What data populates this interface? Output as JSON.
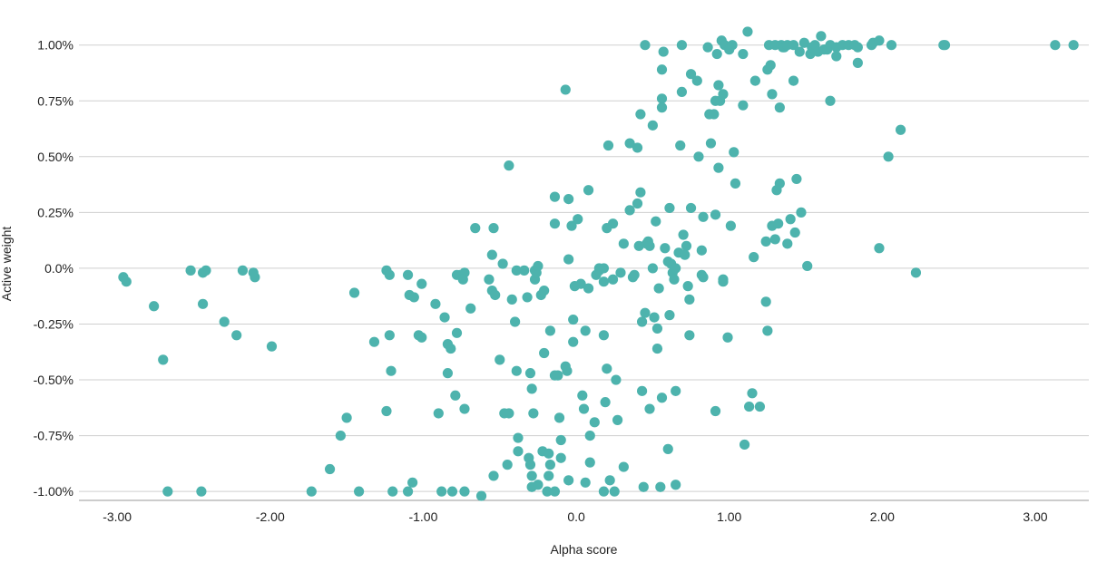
{
  "chart_data": {
    "type": "scatter",
    "title": "",
    "xlabel": "Alpha score",
    "ylabel": "Active weight",
    "xlim": [
      -3.25,
      3.35
    ],
    "ylim": [
      -1.04,
      1.08
    ],
    "x_ticks": [
      -3,
      -2,
      -1,
      0,
      1,
      2,
      3
    ],
    "x_tick_labels": [
      "-3.00",
      "-2.00",
      "-1.00",
      "0.0",
      "1.00",
      "2.00",
      "3.00"
    ],
    "y_ticks": [
      1.0,
      0.75,
      0.5,
      0.25,
      0.0,
      -0.25,
      -0.5,
      -0.75,
      -1.0
    ],
    "y_tick_labels": [
      "1.00%",
      "0.75%",
      "0.50%",
      "0.25%",
      "0.0%",
      "-0.25%",
      "-0.50%",
      "-0.75%",
      "-1.00%"
    ],
    "grid": true,
    "legend": "none",
    "color": "#4db3ad",
    "points": [
      [
        -2.96,
        -0.04
      ],
      [
        -2.94,
        -0.06
      ],
      [
        -2.76,
        -0.17
      ],
      [
        -2.7,
        -0.41
      ],
      [
        -2.67,
        -1.0
      ],
      [
        -2.52,
        -0.01
      ],
      [
        -2.44,
        -0.02
      ],
      [
        -2.42,
        -0.01
      ],
      [
        -2.44,
        -0.16
      ],
      [
        -2.45,
        -1.0
      ],
      [
        -2.3,
        -0.24
      ],
      [
        -2.22,
        -0.3
      ],
      [
        -2.18,
        -0.01
      ],
      [
        -2.11,
        -0.02
      ],
      [
        -2.1,
        -0.04
      ],
      [
        -1.99,
        -0.35
      ],
      [
        -1.73,
        -1.0
      ],
      [
        -1.61,
        -0.9
      ],
      [
        -1.54,
        -0.75
      ],
      [
        -1.5,
        -0.67
      ],
      [
        -1.45,
        -0.11
      ],
      [
        -1.42,
        -1.0
      ],
      [
        -1.32,
        -0.33
      ],
      [
        -1.24,
        -0.01
      ],
      [
        -1.22,
        -0.03
      ],
      [
        -1.22,
        -0.3
      ],
      [
        -1.21,
        -0.46
      ],
      [
        -1.24,
        -0.64
      ],
      [
        -1.2,
        -1.0
      ],
      [
        -1.1,
        -0.03
      ],
      [
        -1.09,
        -0.12
      ],
      [
        -1.06,
        -0.13
      ],
      [
        -1.03,
        -0.3
      ],
      [
        -1.01,
        -0.31
      ],
      [
        -1.01,
        -0.07
      ],
      [
        -1.1,
        -1.0
      ],
      [
        -1.07,
        -0.96
      ],
      [
        -0.92,
        -0.16
      ],
      [
        -0.9,
        -0.65
      ],
      [
        -0.88,
        -1.0
      ],
      [
        -0.86,
        -0.22
      ],
      [
        -0.84,
        -0.34
      ],
      [
        -0.82,
        -0.36
      ],
      [
        -0.84,
        -0.47
      ],
      [
        -0.81,
        -1.0
      ],
      [
        -0.78,
        -0.03
      ],
      [
        -0.76,
        -0.03
      ],
      [
        -0.73,
        -0.02
      ],
      [
        -0.74,
        -0.05
      ],
      [
        -0.78,
        -0.29
      ],
      [
        -0.79,
        -0.57
      ],
      [
        -0.73,
        -0.63
      ],
      [
        -0.73,
        -1.0
      ],
      [
        -0.69,
        -0.18
      ],
      [
        -0.66,
        0.18
      ],
      [
        -0.62,
        -1.02
      ],
      [
        -0.57,
        -0.05
      ],
      [
        -0.55,
        0.06
      ],
      [
        -0.54,
        0.18
      ],
      [
        -0.55,
        -0.1
      ],
      [
        -0.53,
        -0.12
      ],
      [
        -0.54,
        -0.93
      ],
      [
        -0.5,
        -0.41
      ],
      [
        -0.48,
        0.02
      ],
      [
        -0.47,
        -0.65
      ],
      [
        -0.44,
        -0.65
      ],
      [
        -0.45,
        -0.88
      ],
      [
        -0.44,
        0.46
      ],
      [
        -0.42,
        -0.14
      ],
      [
        -0.4,
        -0.24
      ],
      [
        -0.39,
        -0.01
      ],
      [
        -0.39,
        -0.46
      ],
      [
        -0.38,
        -0.76
      ],
      [
        -0.38,
        -0.82
      ],
      [
        -0.34,
        -0.01
      ],
      [
        -0.32,
        -0.13
      ],
      [
        -0.3,
        -0.47
      ],
      [
        -0.29,
        -0.54
      ],
      [
        -0.31,
        -0.85
      ],
      [
        -0.3,
        -0.88
      ],
      [
        -0.29,
        -0.93
      ],
      [
        -0.29,
        -0.98
      ],
      [
        -0.28,
        -0.65
      ],
      [
        -0.27,
        -0.01
      ],
      [
        -0.27,
        -0.05
      ],
      [
        -0.26,
        -0.02
      ],
      [
        -0.25,
        0.01
      ],
      [
        -0.25,
        -0.97
      ],
      [
        -0.23,
        -0.12
      ],
      [
        -0.22,
        -0.82
      ],
      [
        -0.21,
        -0.38
      ],
      [
        -0.21,
        -0.1
      ],
      [
        -0.19,
        -1.0
      ],
      [
        -0.17,
        -0.28
      ],
      [
        -0.18,
        -0.83
      ],
      [
        -0.18,
        -0.93
      ],
      [
        -0.17,
        -0.88
      ],
      [
        -0.14,
        -1.0
      ],
      [
        -0.14,
        0.32
      ],
      [
        -0.14,
        0.2
      ],
      [
        -0.12,
        -0.48
      ],
      [
        -0.14,
        -0.48
      ],
      [
        -0.11,
        -0.67
      ],
      [
        -0.1,
        -0.77
      ],
      [
        -0.1,
        -0.85
      ],
      [
        -0.07,
        0.8
      ],
      [
        -0.07,
        -0.44
      ],
      [
        -0.06,
        -0.46
      ],
      [
        -0.05,
        -0.95
      ],
      [
        -0.05,
        0.04
      ],
      [
        -0.03,
        0.19
      ],
      [
        -0.05,
        0.31
      ],
      [
        -0.02,
        -0.23
      ],
      [
        -0.02,
        -0.33
      ],
      [
        -0.01,
        -0.08
      ],
      [
        0.01,
        0.22
      ],
      [
        0.03,
        -0.07
      ],
      [
        0.04,
        -0.57
      ],
      [
        0.05,
        -0.63
      ],
      [
        0.06,
        -0.28
      ],
      [
        0.06,
        -0.96
      ],
      [
        0.08,
        0.35
      ],
      [
        0.08,
        -0.09
      ],
      [
        0.09,
        -0.75
      ],
      [
        0.09,
        -0.87
      ],
      [
        0.12,
        -0.69
      ],
      [
        0.13,
        -0.03
      ],
      [
        0.15,
        0.0
      ],
      [
        0.15,
        -0.01
      ],
      [
        0.18,
        -0.3
      ],
      [
        0.18,
        -0.06
      ],
      [
        0.18,
        0.0
      ],
      [
        0.18,
        -1.0
      ],
      [
        0.19,
        -0.6
      ],
      [
        0.2,
        -0.45
      ],
      [
        0.2,
        0.18
      ],
      [
        0.21,
        0.55
      ],
      [
        0.22,
        -0.95
      ],
      [
        0.24,
        0.2
      ],
      [
        0.24,
        -0.05
      ],
      [
        0.25,
        -1.0
      ],
      [
        0.26,
        -0.5
      ],
      [
        0.27,
        -0.68
      ],
      [
        0.29,
        -0.02
      ],
      [
        0.31,
        0.11
      ],
      [
        0.31,
        -0.89
      ],
      [
        0.35,
        0.56
      ],
      [
        0.35,
        0.26
      ],
      [
        0.37,
        -0.04
      ],
      [
        0.38,
        -0.03
      ],
      [
        0.4,
        0.54
      ],
      [
        0.4,
        0.29
      ],
      [
        0.41,
        0.1
      ],
      [
        0.42,
        0.69
      ],
      [
        0.42,
        0.34
      ],
      [
        0.43,
        -0.24
      ],
      [
        0.43,
        -0.55
      ],
      [
        0.44,
        -0.98
      ],
      [
        0.45,
        1.0
      ],
      [
        0.45,
        -0.2
      ],
      [
        0.46,
        0.11
      ],
      [
        0.47,
        0.12
      ],
      [
        0.48,
        -0.63
      ],
      [
        0.48,
        0.1
      ],
      [
        0.5,
        0.64
      ],
      [
        0.5,
        0.0
      ],
      [
        0.51,
        -0.22
      ],
      [
        0.52,
        0.21
      ],
      [
        0.53,
        -0.27
      ],
      [
        0.53,
        -0.36
      ],
      [
        0.54,
        -0.09
      ],
      [
        0.55,
        -0.98
      ],
      [
        0.56,
        0.89
      ],
      [
        0.56,
        0.76
      ],
      [
        0.56,
        0.72
      ],
      [
        0.56,
        -0.58
      ],
      [
        0.57,
        0.97
      ],
      [
        0.58,
        0.09
      ],
      [
        0.6,
        0.03
      ],
      [
        0.6,
        -0.81
      ],
      [
        0.61,
        0.27
      ],
      [
        0.61,
        -0.21
      ],
      [
        0.62,
        0.02
      ],
      [
        0.63,
        -0.02
      ],
      [
        0.64,
        -0.05
      ],
      [
        0.65,
        0.0
      ],
      [
        0.65,
        -0.55
      ],
      [
        0.65,
        -0.97
      ],
      [
        0.67,
        0.07
      ],
      [
        0.68,
        0.55
      ],
      [
        0.69,
        1.0
      ],
      [
        0.69,
        0.79
      ],
      [
        0.7,
        0.15
      ],
      [
        0.71,
        0.06
      ],
      [
        0.72,
        0.1
      ],
      [
        0.73,
        -0.08
      ],
      [
        0.74,
        -0.14
      ],
      [
        0.74,
        -0.3
      ],
      [
        0.75,
        0.87
      ],
      [
        0.75,
        0.27
      ],
      [
        0.79,
        0.84
      ],
      [
        0.8,
        0.5
      ],
      [
        0.82,
        0.08
      ],
      [
        0.82,
        -0.03
      ],
      [
        0.83,
        -0.04
      ],
      [
        0.83,
        0.23
      ],
      [
        0.86,
        0.99
      ],
      [
        0.87,
        0.69
      ],
      [
        0.88,
        0.56
      ],
      [
        0.9,
        0.69
      ],
      [
        0.91,
        0.75
      ],
      [
        0.91,
        0.24
      ],
      [
        0.91,
        -0.64
      ],
      [
        0.92,
        0.96
      ],
      [
        0.93,
        0.82
      ],
      [
        0.93,
        0.45
      ],
      [
        0.94,
        0.75
      ],
      [
        0.95,
        1.02
      ],
      [
        0.96,
        0.78
      ],
      [
        0.96,
        -0.05
      ],
      [
        0.96,
        -0.06
      ],
      [
        0.97,
        1.0
      ],
      [
        0.99,
        -0.31
      ],
      [
        1.0,
        0.98
      ],
      [
        1.01,
        0.19
      ],
      [
        1.02,
        1.0
      ],
      [
        1.03,
        0.52
      ],
      [
        1.04,
        0.38
      ],
      [
        1.09,
        0.96
      ],
      [
        1.09,
        0.73
      ],
      [
        1.1,
        -0.79
      ],
      [
        1.12,
        1.06
      ],
      [
        1.13,
        -0.62
      ],
      [
        1.15,
        -0.56
      ],
      [
        1.16,
        0.05
      ],
      [
        1.17,
        0.84
      ],
      [
        1.2,
        -0.62
      ],
      [
        1.24,
        -0.15
      ],
      [
        1.24,
        0.12
      ],
      [
        1.25,
        -0.28
      ],
      [
        1.25,
        0.89
      ],
      [
        1.26,
        1.0
      ],
      [
        1.27,
        0.91
      ],
      [
        1.28,
        0.78
      ],
      [
        1.28,
        0.19
      ],
      [
        1.3,
        1.0
      ],
      [
        1.3,
        0.13
      ],
      [
        1.31,
        0.35
      ],
      [
        1.32,
        0.2
      ],
      [
        1.33,
        0.72
      ],
      [
        1.33,
        0.38
      ],
      [
        1.34,
        1.0
      ],
      [
        1.35,
        0.99
      ],
      [
        1.36,
        0.99
      ],
      [
        1.38,
        1.0
      ],
      [
        1.38,
        0.11
      ],
      [
        1.4,
        0.22
      ],
      [
        1.42,
        0.84
      ],
      [
        1.42,
        1.0
      ],
      [
        1.43,
        0.16
      ],
      [
        1.44,
        0.4
      ],
      [
        1.46,
        0.97
      ],
      [
        1.47,
        0.25
      ],
      [
        1.49,
        1.01
      ],
      [
        1.51,
        0.01
      ],
      [
        1.53,
        0.96
      ],
      [
        1.54,
        0.99
      ],
      [
        1.56,
        1.0
      ],
      [
        1.58,
        0.97
      ],
      [
        1.6,
        1.04
      ],
      [
        1.62,
        0.98
      ],
      [
        1.64,
        0.98
      ],
      [
        1.66,
        0.75
      ],
      [
        1.66,
        1.0
      ],
      [
        1.7,
        0.95
      ],
      [
        1.7,
        0.99
      ],
      [
        1.74,
        1.0
      ],
      [
        1.78,
        1.0
      ],
      [
        1.82,
        1.0
      ],
      [
        1.84,
        0.99
      ],
      [
        1.84,
        0.92
      ],
      [
        1.93,
        1.0
      ],
      [
        1.94,
        1.01
      ],
      [
        1.98,
        1.02
      ],
      [
        1.98,
        0.09
      ],
      [
        2.04,
        0.5
      ],
      [
        2.06,
        1.0
      ],
      [
        2.12,
        0.62
      ],
      [
        2.22,
        -0.02
      ],
      [
        2.4,
        1.0
      ],
      [
        2.41,
        1.0
      ],
      [
        3.13,
        1.0
      ],
      [
        3.25,
        1.0
      ]
    ]
  }
}
